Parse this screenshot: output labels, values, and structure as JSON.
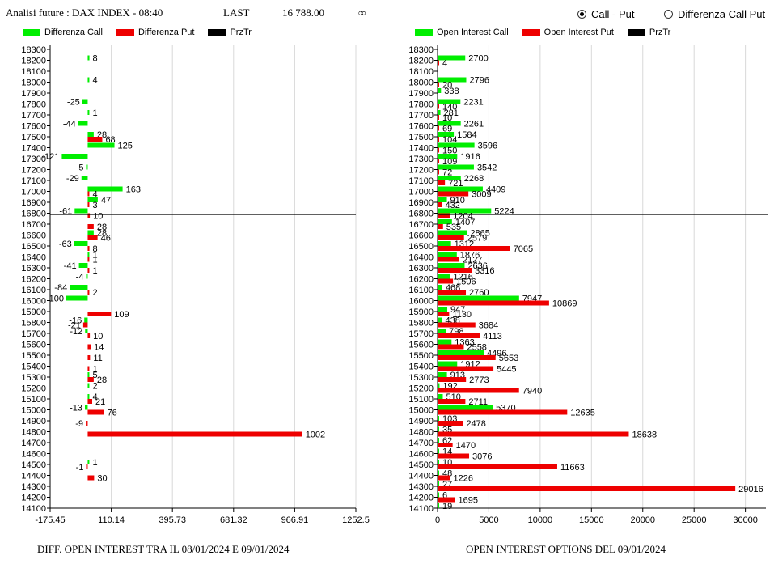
{
  "header": {
    "title": "Analisi future : DAX INDEX - 08:40",
    "last_label": "LAST",
    "last_value": "16 788.00",
    "infinity": "∞"
  },
  "mode": {
    "options": [
      "Call - Put",
      "Differenza Call Put"
    ],
    "selected": "Call - Put"
  },
  "colors": {
    "call": "#00ee00",
    "put": "#ee0000",
    "przTr": "#000000"
  },
  "left_legend": [
    "Differenza Call",
    "Differenza Put",
    "PrzTr"
  ],
  "right_legend": [
    "Open Interest Call",
    "Open Interest Put",
    "PrzTr"
  ],
  "captions": {
    "left": "DIFF. OPEN INTEREST TRA IL 08/01/2024 E 09/01/2024",
    "right": "OPEN INTEREST OPTIONS DEL 09/01/2024"
  },
  "chart_data": [
    {
      "type": "bar",
      "orientation": "horizontal",
      "xlim": [
        -175.45,
        1252.5
      ],
      "xticks": [
        "-175.45",
        "110.14",
        "395.73",
        "681.32",
        "966.91",
        "1252.5"
      ],
      "przTr": 16788,
      "categories": [
        18300,
        18200,
        18100,
        18000,
        17900,
        17800,
        17700,
        17600,
        17500,
        17400,
        17300,
        17200,
        17100,
        17000,
        16900,
        16800,
        16700,
        16600,
        16500,
        16400,
        16300,
        16200,
        16100,
        16000,
        15900,
        15800,
        15700,
        15600,
        15500,
        15400,
        15300,
        15200,
        15100,
        15000,
        14900,
        14800,
        14700,
        14600,
        14500,
        14400,
        14300,
        14200,
        14100
      ],
      "series": [
        {
          "name": "Differenza Call",
          "values": [
            null,
            8,
            null,
            4,
            null,
            -25,
            1,
            -44,
            28,
            125,
            -121,
            -5,
            -29,
            163,
            47,
            -61,
            null,
            28,
            -63,
            1,
            -41,
            -4,
            -84,
            -100,
            null,
            -16,
            -12,
            null,
            null,
            null,
            5,
            2,
            4,
            -13,
            null,
            null,
            null,
            null,
            1,
            null,
            null,
            null,
            null
          ]
        },
        {
          "name": "Differenza Put",
          "values": [
            null,
            null,
            null,
            null,
            null,
            null,
            null,
            null,
            68,
            null,
            null,
            null,
            null,
            4,
            3,
            10,
            28,
            46,
            8,
            1,
            1,
            null,
            2,
            null,
            109,
            -21,
            10,
            14,
            11,
            1,
            28,
            null,
            21,
            76,
            -9,
            1002,
            null,
            null,
            -1,
            30,
            null,
            null,
            null
          ]
        }
      ]
    },
    {
      "type": "bar",
      "orientation": "horizontal",
      "xlim": [
        0,
        32000
      ],
      "xticks": [
        "0",
        "5000",
        "10000",
        "15000",
        "20000",
        "25000",
        "30000"
      ],
      "przTr": 16788,
      "categories": [
        18300,
        18200,
        18100,
        18000,
        17900,
        17800,
        17700,
        17600,
        17500,
        17400,
        17300,
        17200,
        17100,
        17000,
        16900,
        16800,
        16700,
        16600,
        16500,
        16400,
        16300,
        16200,
        16100,
        16000,
        15900,
        15800,
        15700,
        15600,
        15500,
        15400,
        15300,
        15200,
        15100,
        15000,
        14900,
        14800,
        14700,
        14600,
        14500,
        14400,
        14300,
        14200,
        14100
      ],
      "series": [
        {
          "name": "Open Interest Call",
          "values": [
            null,
            2700,
            null,
            2796,
            338,
            2231,
            281,
            2261,
            1584,
            3596,
            1916,
            3542,
            2268,
            4409,
            910,
            5224,
            1407,
            2865,
            1312,
            1876,
            2636,
            1216,
            468,
            7947,
            947,
            438,
            798,
            1363,
            4496,
            1912,
            913,
            192,
            510,
            5370,
            103,
            35,
            62,
            14,
            10,
            48,
            27,
            6,
            19
          ]
        },
        {
          "name": "Open Interest Put",
          "values": [
            null,
            4,
            null,
            20,
            null,
            140,
            10,
            69,
            104,
            150,
            109,
            72,
            721,
            3009,
            432,
            1204,
            535,
            2579,
            7065,
            2127,
            3316,
            1506,
            2760,
            10869,
            1130,
            3684,
            4113,
            2558,
            5653,
            5445,
            2773,
            7940,
            2711,
            12635,
            2478,
            18638,
            1470,
            3076,
            11663,
            1226,
            29016,
            1695,
            null
          ]
        }
      ]
    }
  ]
}
